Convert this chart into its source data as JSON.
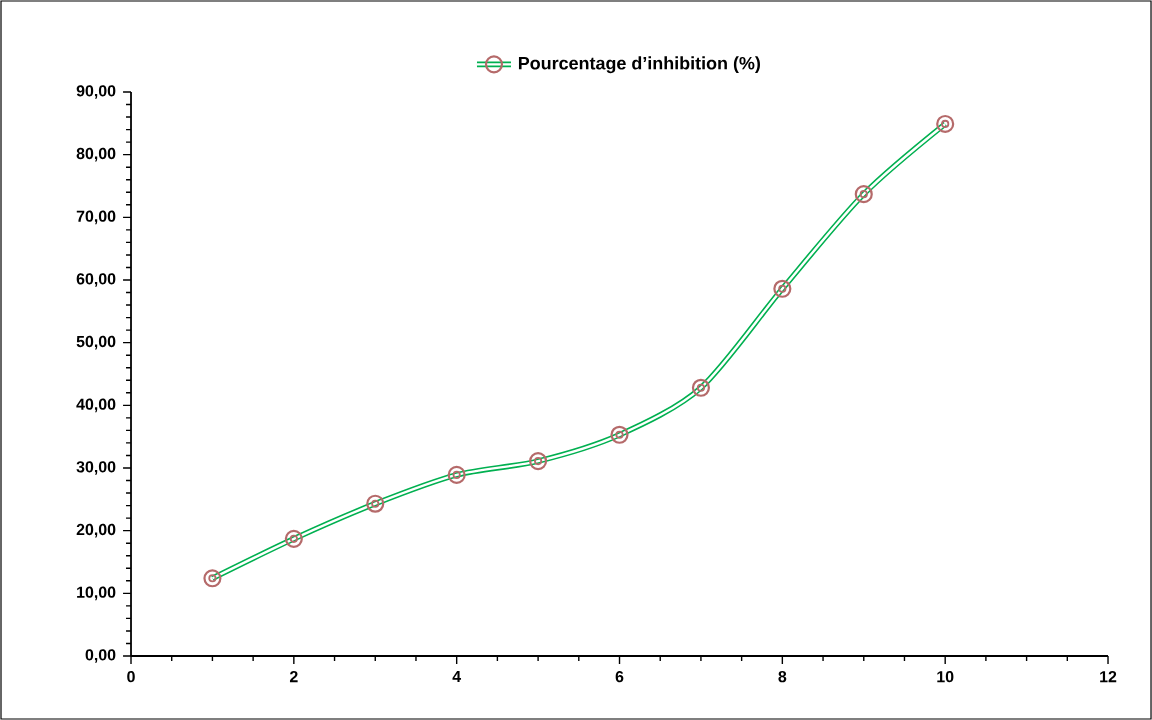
{
  "chart_data": {
    "type": "line",
    "x": [
      1,
      2,
      3,
      4,
      5,
      6,
      7,
      8,
      9,
      10
    ],
    "series": [
      {
        "name": "Pourcentage d’inhibition (%)",
        "color": "#00b050",
        "colors": [
          "#b56a6a",
          "#b56a6a",
          "#b56a6a",
          "#b56a6a",
          "#b56a6a",
          "#b56a6a",
          "#b56a6a",
          "#b56a6a",
          "#b56a6a",
          "#b56a6a"
        ],
        "values": [
          12.4,
          18.7,
          24.3,
          28.9,
          31.1,
          35.3,
          42.8,
          58.6,
          73.7,
          84.9
        ]
      }
    ],
    "xlim": [
      0,
      12
    ],
    "xticks": [
      0,
      2,
      4,
      6,
      8,
      10,
      12
    ],
    "ylim": [
      0,
      90
    ],
    "yticks": [
      {
        "value": 0,
        "label": "0,00"
      },
      {
        "value": 10,
        "label": "10,00"
      },
      {
        "value": 20,
        "label": "20,00"
      },
      {
        "value": 30,
        "label": "30,00"
      },
      {
        "value": 40,
        "label": "40,00"
      },
      {
        "value": 50,
        "label": "50,00"
      },
      {
        "value": 60,
        "label": "60,00"
      },
      {
        "value": 70,
        "label": "70,00"
      },
      {
        "value": 80,
        "label": "80,00"
      },
      {
        "value": 90,
        "label": "90,00"
      }
    ],
    "legend": "top",
    "marker": "circle",
    "line_style": "solid",
    "grid": false
  }
}
